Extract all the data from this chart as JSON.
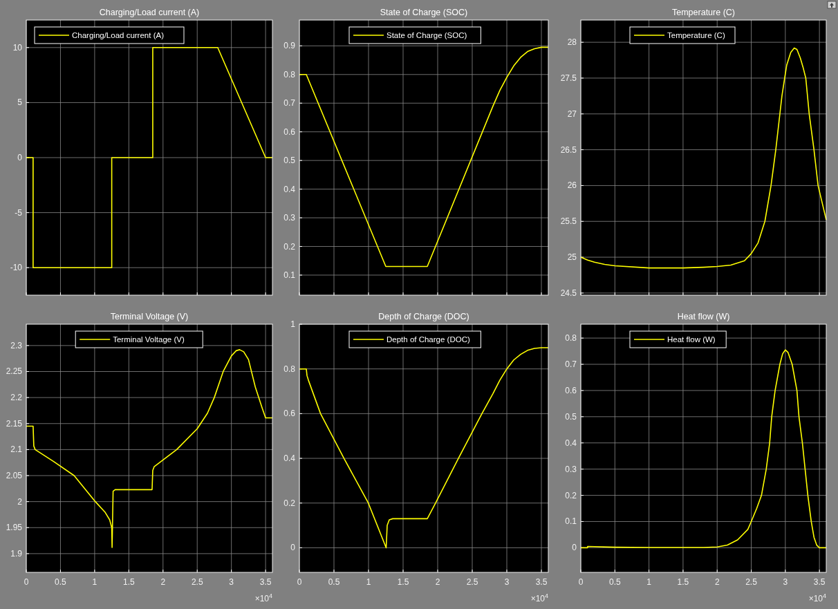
{
  "chart_data": [
    {
      "type": "line",
      "title": "Charging/Load current (A)",
      "legend": "top left",
      "grid": true,
      "tick_labels": "y",
      "xlim": [
        0,
        3.6
      ],
      "xticks": [
        0,
        0.5,
        1,
        1.5,
        2,
        2.5,
        3,
        3.5
      ],
      "ylim": [
        -12.5,
        12.5
      ],
      "yticks": [
        -10,
        -5,
        0,
        5,
        10
      ],
      "x": [
        0,
        0.1,
        0.1,
        1.25,
        1.25,
        1.85,
        1.85,
        2.8,
        3.5,
        3.6
      ],
      "series": [
        {
          "name": "Charging/Load current (A)",
          "color": "#ffff00",
          "values": [
            0,
            0,
            -10,
            -10,
            0,
            0,
            10,
            10,
            0,
            0
          ]
        }
      ]
    },
    {
      "type": "line",
      "title": "State of Charge (SOC)",
      "legend": "top",
      "grid": true,
      "tick_labels": "y",
      "xlim": [
        0,
        3.6
      ],
      "xticks": [
        0,
        0.5,
        1,
        1.5,
        2,
        2.5,
        3,
        3.5
      ],
      "ylim": [
        0.03,
        0.99
      ],
      "yticks": [
        0.1,
        0.2,
        0.3,
        0.4,
        0.5,
        0.6,
        0.7,
        0.8,
        0.9
      ],
      "x": [
        0,
        0.1,
        1.25,
        1.85,
        2.8,
        2.9,
        3.0,
        3.1,
        3.2,
        3.3,
        3.4,
        3.5,
        3.6
      ],
      "series": [
        {
          "name": "State of Charge (SOC)",
          "color": "#ffff00",
          "values": [
            0.8,
            0.8,
            0.13,
            0.13,
            0.69,
            0.745,
            0.79,
            0.83,
            0.86,
            0.88,
            0.89,
            0.895,
            0.895
          ]
        }
      ]
    },
    {
      "type": "line",
      "title": "Temperature (C)",
      "legend": "top",
      "grid": true,
      "tick_labels": "y",
      "xlim": [
        0,
        3.6
      ],
      "xticks": [
        0,
        0.5,
        1,
        1.5,
        2,
        2.5,
        3,
        3.5
      ],
      "ylim": [
        24.47,
        28.31
      ],
      "yticks": [
        24.5,
        25,
        25.5,
        26,
        26.5,
        27,
        27.5,
        28
      ],
      "x": [
        0,
        0.1,
        0.2,
        0.35,
        0.5,
        1.0,
        1.5,
        1.8,
        2.0,
        2.2,
        2.4,
        2.5,
        2.6,
        2.7,
        2.79,
        2.86,
        2.92,
        2.95,
        2.99,
        3.02,
        3.08,
        3.13,
        3.17,
        3.22,
        3.26,
        3.3,
        3.35,
        3.42,
        3.48,
        3.6
      ],
      "series": [
        {
          "name": "Temperature (C)",
          "color": "#ffff00",
          "values": [
            25.0,
            24.96,
            24.93,
            24.9,
            24.88,
            24.85,
            24.85,
            24.86,
            24.87,
            24.89,
            24.95,
            25.05,
            25.2,
            25.5,
            26.0,
            26.5,
            27.0,
            27.25,
            27.5,
            27.68,
            27.86,
            27.92,
            27.9,
            27.78,
            27.65,
            27.5,
            27.0,
            26.5,
            26.0,
            25.52
          ]
        }
      ]
    },
    {
      "type": "line",
      "title": "Terminal Voltage (V)",
      "legend": "top",
      "grid": true,
      "annotations": [
        "×10$^{4}$"
      ],
      "xlim": [
        0,
        3.6
      ],
      "xticks": [
        0,
        0.5,
        1,
        1.5,
        2,
        2.5,
        3,
        3.5
      ],
      "ylim": [
        1.864,
        2.341
      ],
      "yticks": [
        1.9,
        1.95,
        2,
        2.05,
        2.1,
        2.15,
        2.2,
        2.25,
        2.3
      ],
      "x": [
        0,
        0.1,
        0.11,
        0.13,
        0.4,
        0.7,
        1.01,
        1.15,
        1.22,
        1.25,
        1.255,
        1.27,
        1.3,
        1.84,
        1.85,
        1.87,
        2.0,
        2.2,
        2.5,
        2.65,
        2.75,
        2.88,
        3.0,
        3.07,
        3.12,
        3.18,
        3.25,
        3.35,
        3.45,
        3.5,
        3.6
      ],
      "series": [
        {
          "name": "Terminal Voltage (V)",
          "color": "#ffff00",
          "values": [
            2.145,
            2.145,
            2.107,
            2.1,
            2.077,
            2.05,
            2.0,
            1.98,
            1.965,
            1.95,
            1.912,
            2.02,
            2.023,
            2.023,
            2.06,
            2.067,
            2.08,
            2.1,
            2.14,
            2.17,
            2.2,
            2.25,
            2.28,
            2.29,
            2.292,
            2.288,
            2.273,
            2.22,
            2.18,
            2.161,
            2.161
          ]
        }
      ]
    },
    {
      "type": "line",
      "title": "Depth of Charge (DOC)",
      "legend": "top",
      "grid": true,
      "annotations": [
        "×10$^{4}$"
      ],
      "xlim": [
        0,
        3.6
      ],
      "xticks": [
        0,
        0.5,
        1,
        1.5,
        2,
        2.5,
        3,
        3.5
      ],
      "ylim": [
        -0.11,
        1
      ],
      "yticks": [
        0,
        0.2,
        0.4,
        0.6,
        0.8,
        1
      ],
      "x": [
        0,
        0.1,
        0.11,
        0.13,
        0.306,
        0.645,
        0.997,
        1.255,
        1.27,
        1.3,
        1.35,
        1.85,
        1.97,
        2.3,
        2.64,
        2.8,
        2.9,
        3.0,
        3.1,
        3.2,
        3.3,
        3.4,
        3.5,
        3.6
      ],
      "series": [
        {
          "name": "Depth of Charge (DOC)",
          "color": "#ffff00",
          "values": [
            0.8,
            0.8,
            0.77,
            0.75,
            0.6,
            0.4,
            0.2,
            0,
            0.1,
            0.125,
            0.13,
            0.13,
            0.2,
            0.4,
            0.6,
            0.69,
            0.75,
            0.8,
            0.84,
            0.865,
            0.883,
            0.892,
            0.895,
            0.895
          ]
        }
      ]
    },
    {
      "type": "line",
      "title": "Heat flow (W)",
      "legend": "top",
      "grid": true,
      "annotations": [
        "×10$^{4}$"
      ],
      "xlim": [
        0,
        3.6
      ],
      "xticks": [
        0,
        0.5,
        1,
        1.5,
        2,
        2.5,
        3,
        3.5
      ],
      "ylim": [
        -0.094,
        0.853
      ],
      "yticks": [
        0,
        0.1,
        0.2,
        0.3,
        0.4,
        0.5,
        0.6,
        0.7,
        0.8
      ],
      "x": [
        0,
        0.1,
        0.1,
        0.5,
        1.0,
        1.8,
        2.0,
        2.15,
        2.3,
        2.45,
        2.5,
        2.58,
        2.65,
        2.72,
        2.77,
        2.8,
        2.85,
        2.92,
        2.96,
        3.0,
        3.04,
        3.1,
        3.17,
        3.2,
        3.25,
        3.29,
        3.33,
        3.38,
        3.42,
        3.46,
        3.5,
        3.6
      ],
      "series": [
        {
          "name": "Heat flow (W)",
          "color": "#ffff00",
          "values": [
            0,
            0,
            0.005,
            0.002,
            0.001,
            0.001,
            0.003,
            0.01,
            0.03,
            0.07,
            0.1,
            0.15,
            0.2,
            0.3,
            0.4,
            0.5,
            0.6,
            0.7,
            0.74,
            0.755,
            0.745,
            0.7,
            0.6,
            0.5,
            0.4,
            0.3,
            0.2,
            0.1,
            0.04,
            0.01,
            0,
            0
          ]
        }
      ]
    }
  ]
}
